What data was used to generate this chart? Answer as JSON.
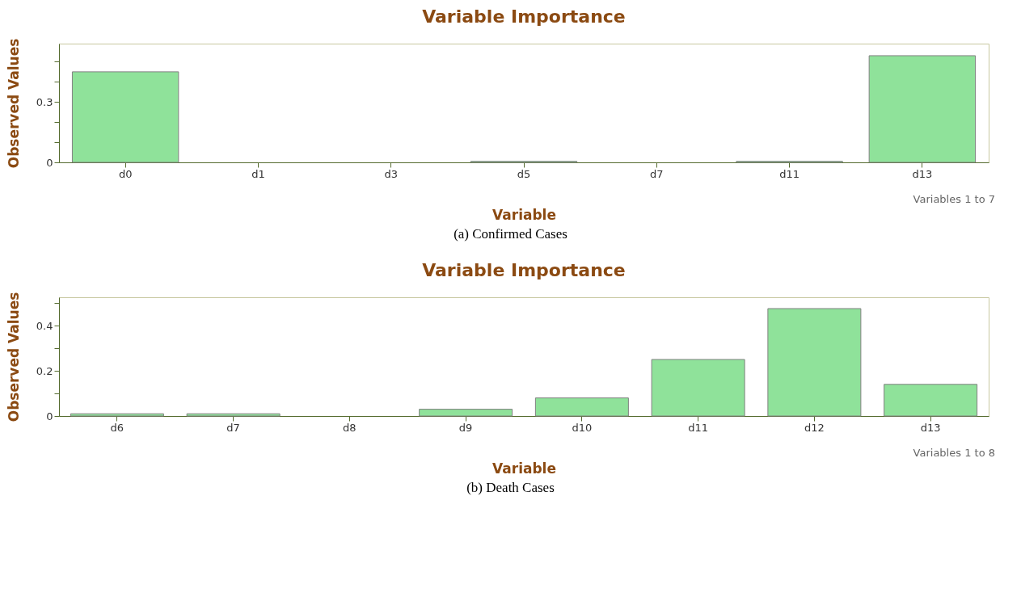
{
  "chart_data": [
    {
      "type": "bar",
      "title": "Variable Importance",
      "xlabel": "Variable",
      "ylabel": "Observed Values",
      "categories": [
        "d0",
        "d1",
        "d3",
        "d5",
        "d7",
        "d11",
        "d13"
      ],
      "values": [
        0.45,
        0,
        0,
        0.005,
        0,
        0.005,
        0.53
      ],
      "color": "#8fe29a",
      "ylim": [
        0,
        0.59
      ],
      "yticks": [
        0,
        {
          "value": 0.1,
          "label": null
        },
        {
          "value": 0.2,
          "label": null
        },
        0.3,
        {
          "value": 0.4,
          "label": null
        },
        {
          "value": 0.5,
          "label": null
        }
      ],
      "grid": false,
      "annotations": [
        "Variables 1 to 7",
        "(a) Confirmed Cases"
      ]
    },
    {
      "type": "bar",
      "title": "Variable Importance",
      "xlabel": "Variable",
      "ylabel": "Observed Values",
      "categories": [
        "d6",
        "d7",
        "d8",
        "d9",
        "d10",
        "d11",
        "d12",
        "d13"
      ],
      "values": [
        0.01,
        0.01,
        0,
        0.03,
        0.08,
        0.25,
        0.475,
        0.14
      ],
      "color": "#8fe29a",
      "ylim": [
        0,
        0.525
      ],
      "yticks": [
        0,
        {
          "value": 0.1,
          "label": null
        },
        0.2,
        {
          "value": 0.3,
          "label": null
        },
        0.4,
        {
          "value": 0.5,
          "label": null
        }
      ],
      "grid": false,
      "annotations": [
        "Variables 1 to 8",
        "(b) Death Cases"
      ]
    }
  ]
}
